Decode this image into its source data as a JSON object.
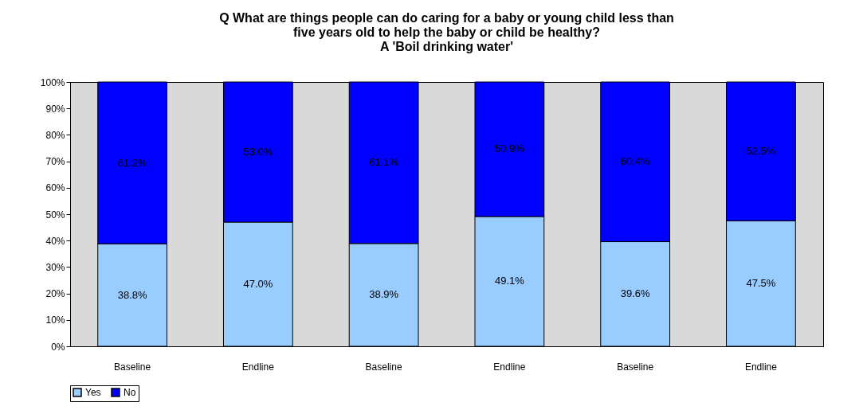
{
  "chart_data": {
    "type": "bar",
    "stacked": true,
    "title": "Q What are things people can do caring for a baby or young child less than\nfive years old to help the baby or child be healthy?\nA 'Boil drinking water'",
    "categories": [
      "Baseline",
      "Endline",
      "Baseline",
      "Endline",
      "Baseline",
      "Endline"
    ],
    "series": [
      {
        "name": "Yes",
        "color": "#99ccff",
        "values": [
          38.8,
          47.0,
          38.9,
          49.1,
          39.6,
          47.5
        ]
      },
      {
        "name": "No",
        "color": "#0000ff",
        "values": [
          61.2,
          53.0,
          61.1,
          50.9,
          60.4,
          52.5
        ]
      }
    ],
    "value_labels": [
      [
        "38.8%",
        "47.0%",
        "38.9%",
        "49.1%",
        "39.6%",
        "47.5%"
      ],
      [
        "61.2%",
        "53.0%",
        "61.1%",
        "50.9%",
        "60.4%",
        "52.5%"
      ]
    ],
    "ylim": [
      0,
      100
    ],
    "yticks": [
      {
        "value": 0,
        "label": "0%"
      },
      {
        "value": 10,
        "label": "10%"
      },
      {
        "value": 20,
        "label": "20%"
      },
      {
        "value": 30,
        "label": "30%"
      },
      {
        "value": 40,
        "label": "40%"
      },
      {
        "value": 50,
        "label": "50%"
      },
      {
        "value": 60,
        "label": "60%"
      },
      {
        "value": 70,
        "label": "70%"
      },
      {
        "value": 80,
        "label": "80%"
      },
      {
        "value": 90,
        "label": "90%"
      },
      {
        "value": 100,
        "label": "100%"
      }
    ],
    "grid": false,
    "legend": "bottom"
  }
}
